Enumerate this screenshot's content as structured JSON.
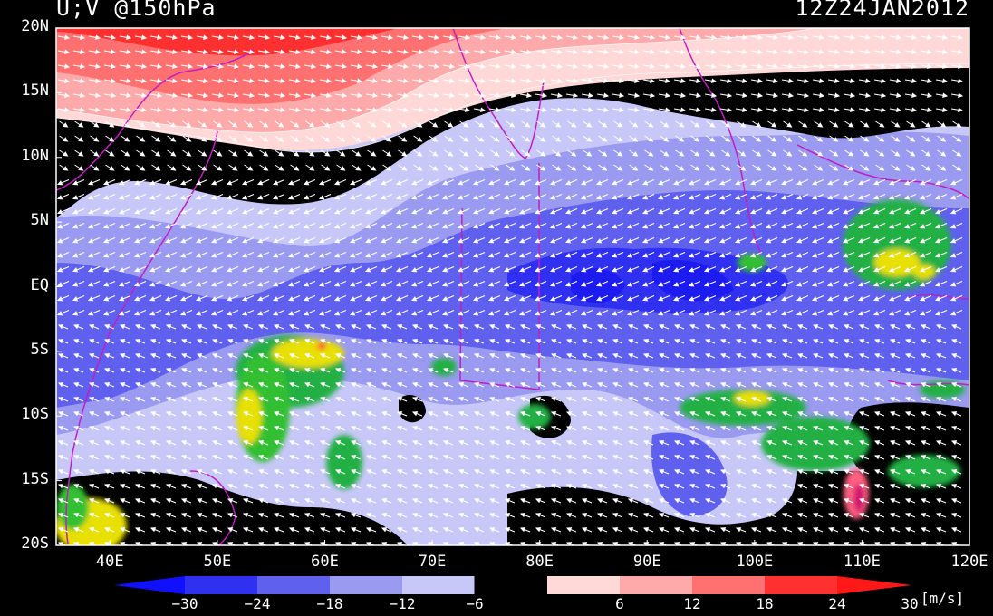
{
  "header": {
    "variable_label": "U;V @150hPa",
    "valid_time": "12Z24JAN2012"
  },
  "map": {
    "lon_range": [
      35,
      120
    ],
    "lat_range": [
      -20,
      20
    ],
    "lat_ticks": [
      {
        "value": 20,
        "label": "20N"
      },
      {
        "value": 15,
        "label": "15N"
      },
      {
        "value": 10,
        "label": "10N"
      },
      {
        "value": 5,
        "label": "5N"
      },
      {
        "value": 0,
        "label": "EQ"
      },
      {
        "value": -5,
        "label": "5S"
      },
      {
        "value": -10,
        "label": "10S"
      },
      {
        "value": -15,
        "label": "15S"
      },
      {
        "value": -20,
        "label": "20S"
      }
    ],
    "lon_ticks": [
      {
        "value": 40,
        "label": "40E"
      },
      {
        "value": 50,
        "label": "50E"
      },
      {
        "value": 60,
        "label": "60E"
      },
      {
        "value": 70,
        "label": "70E"
      },
      {
        "value": 80,
        "label": "80E"
      },
      {
        "value": 90,
        "label": "90E"
      },
      {
        "value": 100,
        "label": "100E"
      },
      {
        "value": 110,
        "label": "110E"
      },
      {
        "value": 120,
        "label": "120E"
      }
    ]
  },
  "colorbar": {
    "units": "[m/s]",
    "labels": [
      "−30",
      "−24",
      "−18",
      "−12",
      "−6",
      "6",
      "12",
      "18",
      "24",
      "30"
    ],
    "colors": [
      "#3030f0",
      "#6060ee",
      "#9a9af0",
      "#c8c8f8",
      "#000000",
      "#ffd8d8",
      "#ffaaaa",
      "#ff7070",
      "#ff3030"
    ],
    "under_color": "#1010ff",
    "over_color": "#ff1818"
  }
}
